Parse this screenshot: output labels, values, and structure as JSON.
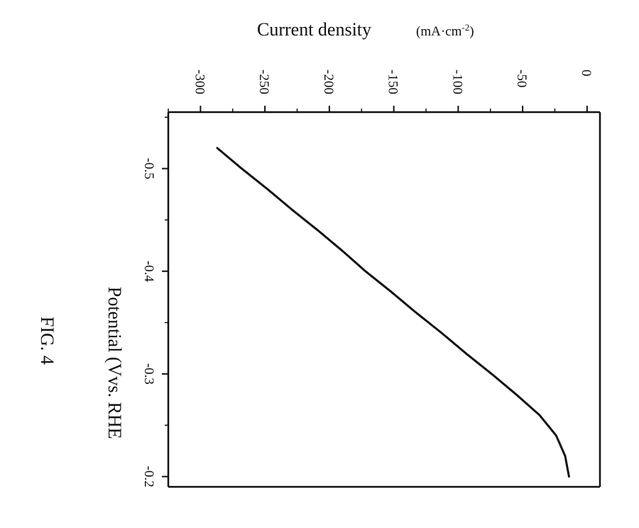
{
  "figure_label": "FIG. 4",
  "chart_data": {
    "type": "line",
    "title": "",
    "ylabel": "Current density",
    "ylabel_unit_prefix": "(mA·cm",
    "ylabel_unit_sup": "-2",
    "ylabel_unit_suffix": ")",
    "xlabel": "Potential (Vvs. RHE",
    "orientation": "rotated 90° clockwise (potential runs top→bottom, current density runs left→right across the top)",
    "xlim": [
      -0.555,
      -0.19
    ],
    "ylim": [
      -325,
      10
    ],
    "xticks": [
      -0.5,
      -0.4,
      -0.3,
      -0.2
    ],
    "xtick_labels": [
      "-0.5",
      "-0.4",
      "-0.3",
      "-0.2"
    ],
    "yticks": [
      -300,
      -250,
      -200,
      -150,
      -100,
      -50,
      0
    ],
    "ytick_labels": [
      "-300",
      "-250",
      "-200",
      "-150",
      "-100",
      "-50",
      "0"
    ],
    "grid": false,
    "legend": "none",
    "series": [
      {
        "color": "#111111",
        "x": [
          -0.52,
          -0.5,
          -0.48,
          -0.46,
          -0.44,
          -0.42,
          -0.4,
          -0.38,
          -0.36,
          -0.34,
          -0.32,
          -0.3,
          -0.28,
          -0.26,
          -0.24,
          -0.22,
          -0.2
        ],
        "y": [
          -287,
          -268,
          -248,
          -229,
          -209,
          -190,
          -172,
          -152,
          -133,
          -113,
          -94,
          -74,
          -55,
          -37,
          -24,
          -17,
          -14
        ]
      }
    ]
  }
}
